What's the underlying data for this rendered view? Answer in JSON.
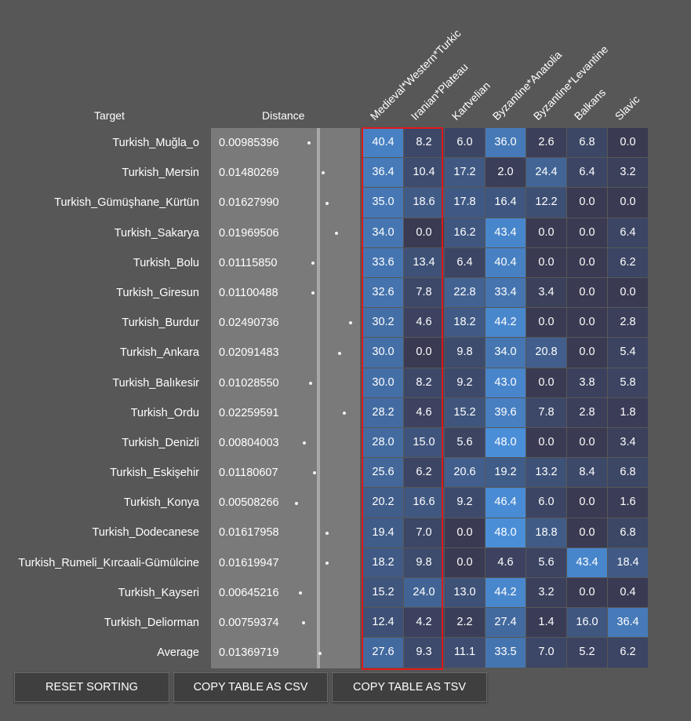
{
  "headers": {
    "target": "Target",
    "distance": "Distance",
    "columns": [
      "Medieval*Western*Turkic",
      "Iranian*Plateau",
      "Kartvelian",
      "Byzantine*Anatolia",
      "Byzantine*Levantine",
      "Balkans",
      "Slavic"
    ]
  },
  "rows": [
    {
      "name": "Turkish_Muğla_o",
      "distance": "0.00985396",
      "values": [
        "40.4",
        "8.2",
        "6.0",
        "36.0",
        "2.6",
        "6.8",
        "0.0"
      ]
    },
    {
      "name": "Turkish_Mersin",
      "distance": "0.01480269",
      "values": [
        "36.4",
        "10.4",
        "17.2",
        "2.0",
        "24.4",
        "6.4",
        "3.2"
      ]
    },
    {
      "name": "Turkish_Gümüşhane_Kürtün",
      "distance": "0.01627990",
      "values": [
        "35.0",
        "18.6",
        "17.8",
        "16.4",
        "12.2",
        "0.0",
        "0.0"
      ]
    },
    {
      "name": "Turkish_Sakarya",
      "distance": "0.01969506",
      "values": [
        "34.0",
        "0.0",
        "16.2",
        "43.4",
        "0.0",
        "0.0",
        "6.4"
      ]
    },
    {
      "name": "Turkish_Bolu",
      "distance": "0.01115850",
      "values": [
        "33.6",
        "13.4",
        "6.4",
        "40.4",
        "0.0",
        "0.0",
        "6.2"
      ]
    },
    {
      "name": "Turkish_Giresun",
      "distance": "0.01100488",
      "values": [
        "32.6",
        "7.8",
        "22.8",
        "33.4",
        "3.4",
        "0.0",
        "0.0"
      ]
    },
    {
      "name": "Turkish_Burdur",
      "distance": "0.02490736",
      "values": [
        "30.2",
        "4.6",
        "18.2",
        "44.2",
        "0.0",
        "0.0",
        "2.8"
      ]
    },
    {
      "name": "Turkish_Ankara",
      "distance": "0.02091483",
      "values": [
        "30.0",
        "0.0",
        "9.8",
        "34.0",
        "20.8",
        "0.0",
        "5.4"
      ]
    },
    {
      "name": "Turkish_Balıkesir",
      "distance": "0.01028550",
      "values": [
        "30.0",
        "8.2",
        "9.2",
        "43.0",
        "0.0",
        "3.8",
        "5.8"
      ]
    },
    {
      "name": "Turkish_Ordu",
      "distance": "0.02259591",
      "values": [
        "28.2",
        "4.6",
        "15.2",
        "39.6",
        "7.8",
        "2.8",
        "1.8"
      ]
    },
    {
      "name": "Turkish_Denizli",
      "distance": "0.00804003",
      "values": [
        "28.0",
        "15.0",
        "5.6",
        "48.0",
        "0.0",
        "0.0",
        "3.4"
      ]
    },
    {
      "name": "Turkish_Eskişehir",
      "distance": "0.01180607",
      "values": [
        "25.6",
        "6.2",
        "20.6",
        "19.2",
        "13.2",
        "8.4",
        "6.8"
      ]
    },
    {
      "name": "Turkish_Konya",
      "distance": "0.00508266",
      "values": [
        "20.2",
        "16.6",
        "9.2",
        "46.4",
        "6.0",
        "0.0",
        "1.6"
      ]
    },
    {
      "name": "Turkish_Dodecanese",
      "distance": "0.01617958",
      "values": [
        "19.4",
        "7.0",
        "0.0",
        "48.0",
        "18.8",
        "0.0",
        "6.8"
      ]
    },
    {
      "name": "Turkish_Rumeli_Kırcaali-Gümülcine",
      "distance": "0.01619947",
      "values": [
        "18.2",
        "9.8",
        "0.0",
        "4.6",
        "5.6",
        "43.4",
        "18.4"
      ]
    },
    {
      "name": "Turkish_Kayseri",
      "distance": "0.00645216",
      "values": [
        "15.2",
        "24.0",
        "13.0",
        "44.2",
        "3.2",
        "0.0",
        "0.4"
      ]
    },
    {
      "name": "Turkish_Deliorman",
      "distance": "0.00759374",
      "values": [
        "12.4",
        "4.2",
        "2.2",
        "27.4",
        "1.4",
        "16.0",
        "36.4"
      ]
    },
    {
      "name": "Average",
      "distance": "0.01369719",
      "values": [
        "27.6",
        "9.3",
        "11.1",
        "33.5",
        "7.0",
        "5.2",
        "6.2"
      ]
    }
  ],
  "buttons": {
    "reset": "RESET SORTING",
    "csv": "COPY TABLE AS CSV",
    "tsv": "COPY TABLE AS TSV"
  },
  "colors": {
    "background": "#575757",
    "cell_low": "#3a3a52",
    "cell_high": "#4a8ed8",
    "highlight_border": "#e01818"
  }
}
